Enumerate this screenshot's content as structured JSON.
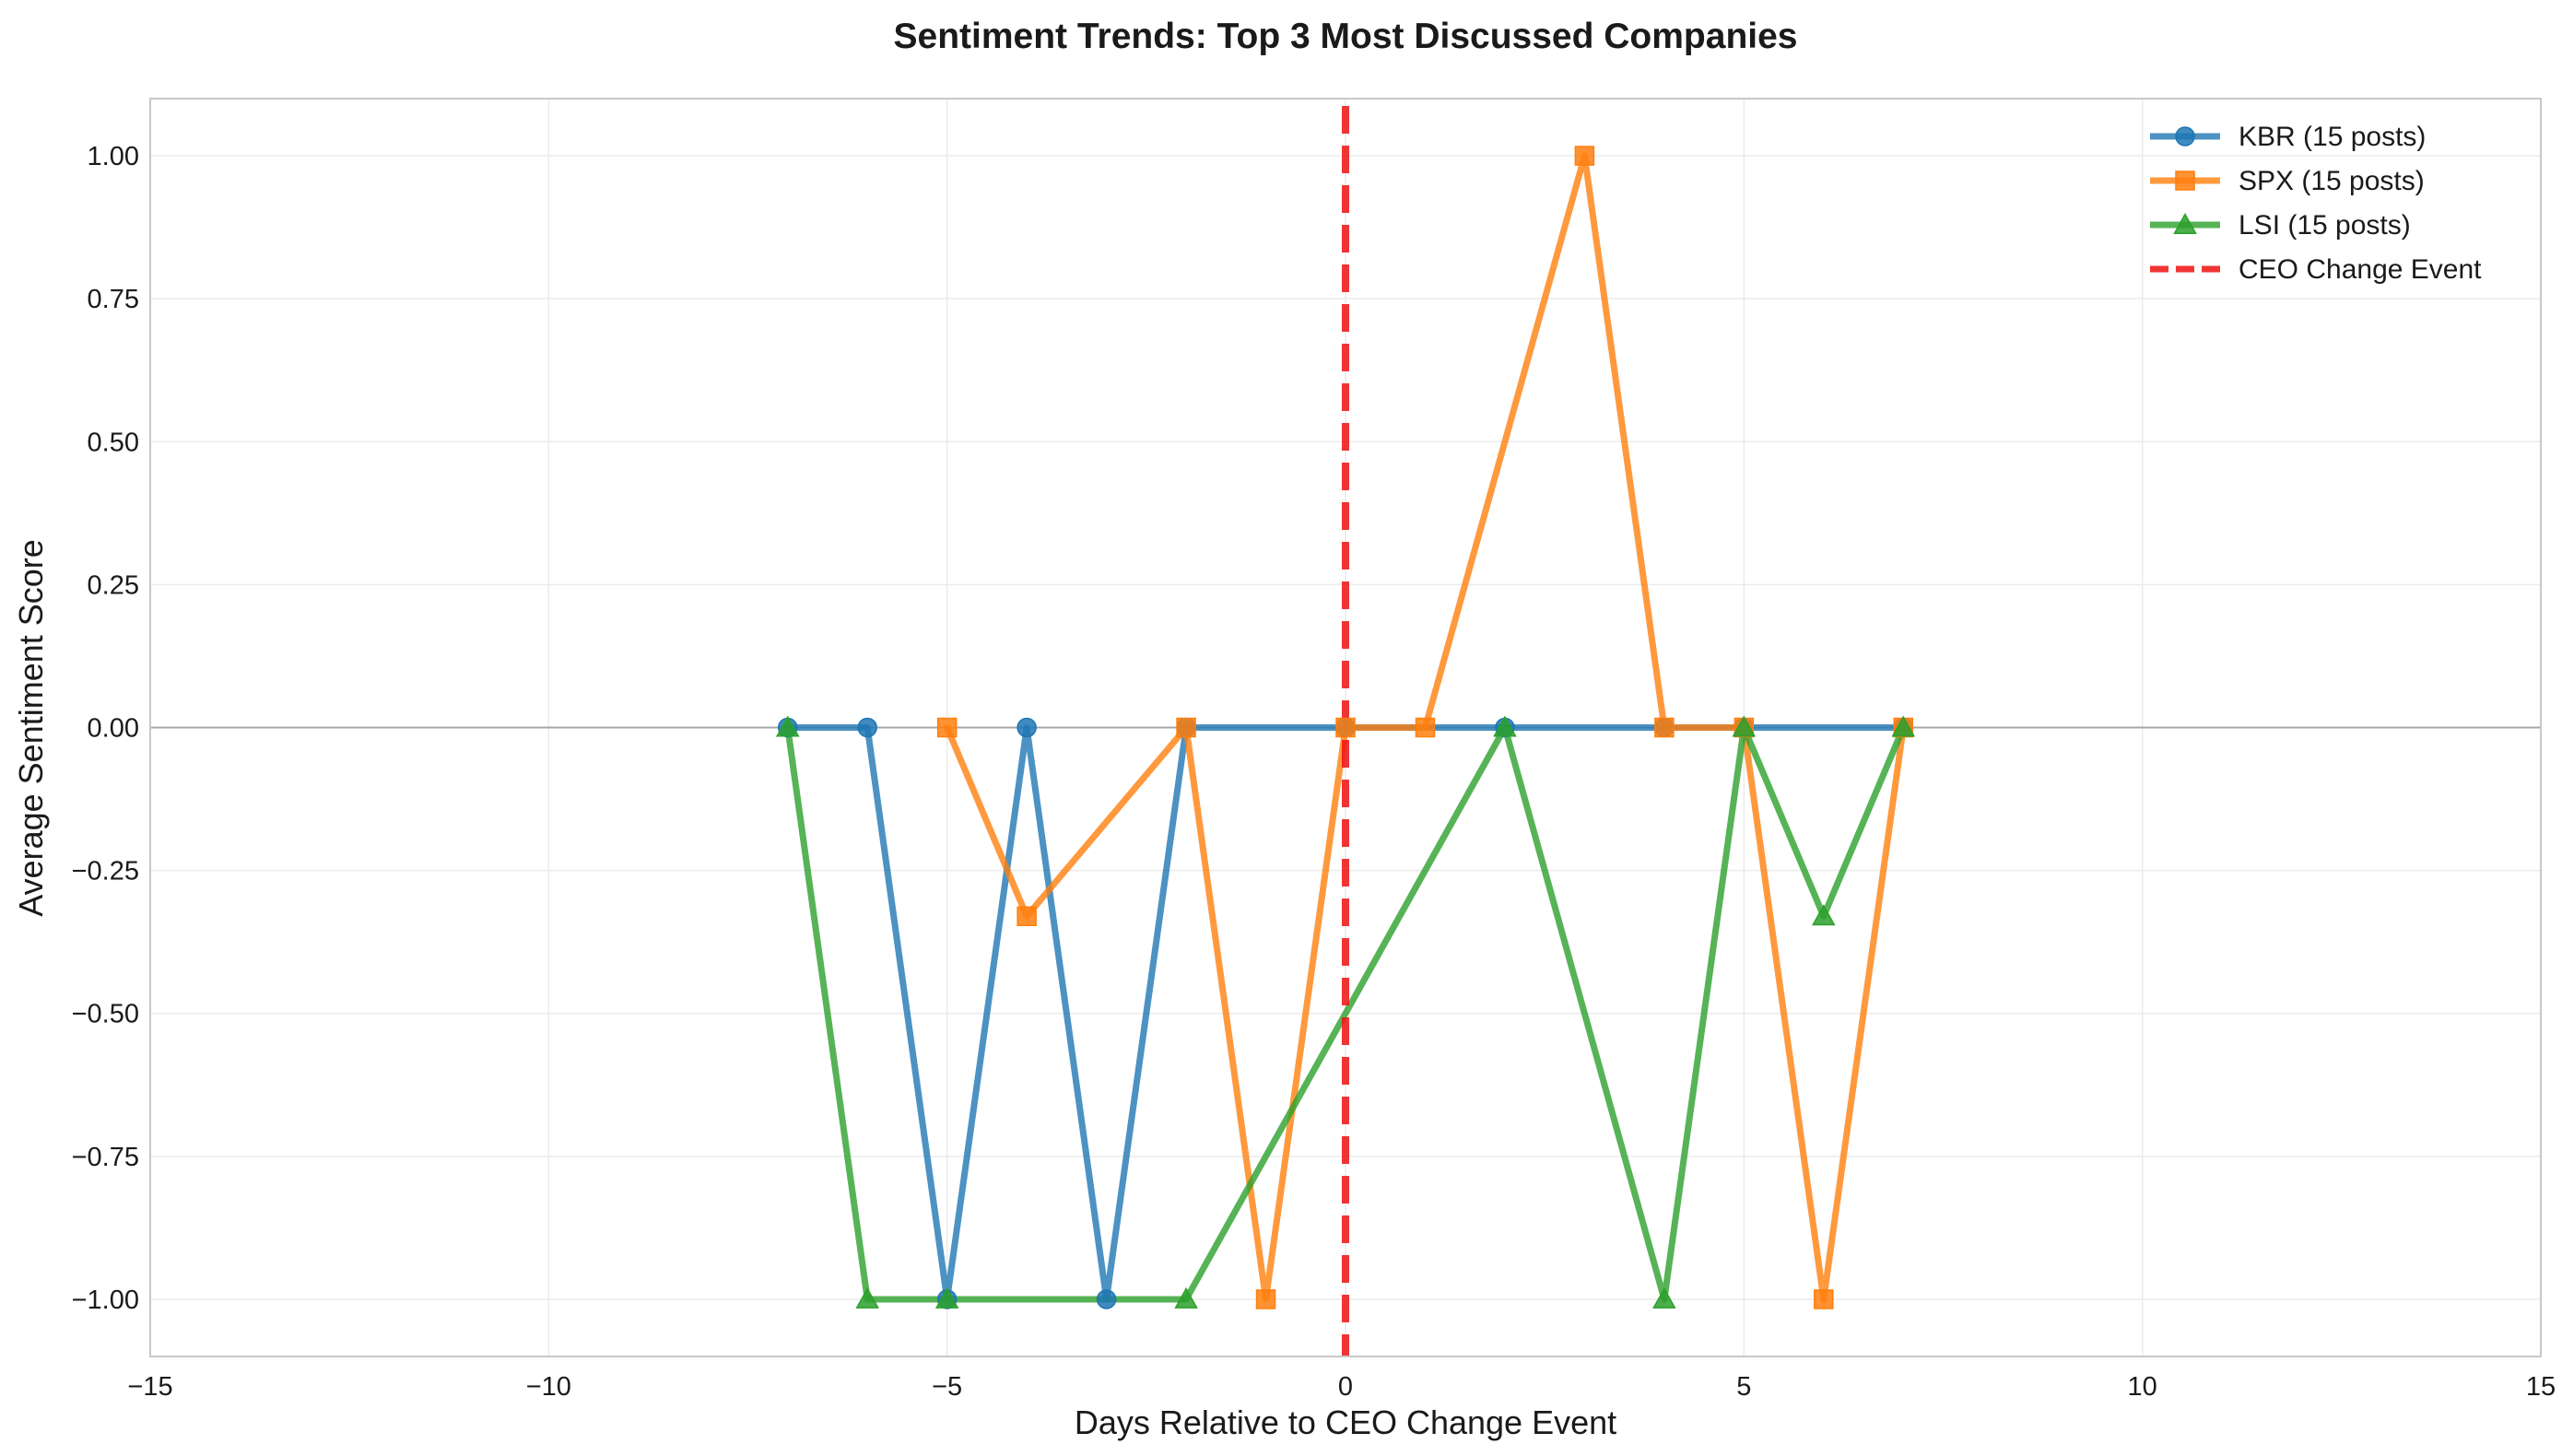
{
  "chart_data": {
    "type": "line",
    "title": "Sentiment Trends: Top 3 Most Discussed Companies",
    "xlabel": "Days Relative to CEO Change Event",
    "ylabel": "Average Sentiment Score",
    "xlim": [
      -15,
      15
    ],
    "ylim": [
      -1.1,
      1.1
    ],
    "xticks": [
      -15,
      -10,
      -5,
      0,
      5,
      10,
      15
    ],
    "xtick_labels": [
      "−15",
      "−10",
      "−5",
      "0",
      "5",
      "10",
      "15"
    ],
    "yticks": [
      -1.0,
      -0.75,
      -0.5,
      -0.25,
      0.0,
      0.25,
      0.5,
      0.75,
      1.0
    ],
    "ytick_labels": [
      "−1.00",
      "−0.75",
      "−0.50",
      "−0.25",
      "0.00",
      "0.25",
      "0.50",
      "0.75",
      "1.00"
    ],
    "grid": true,
    "legend_position": "top-right",
    "series": [
      {
        "name": "KBR (15 posts)",
        "color": "#1f77b4",
        "marker": "circle",
        "x": [
          -7,
          -6,
          -5,
          -4,
          -3,
          -2,
          0,
          2,
          4,
          5,
          7
        ],
        "y": [
          0,
          0,
          -1,
          0,
          -1,
          0,
          0,
          0,
          0,
          0,
          0
        ]
      },
      {
        "name": "SPX (15 posts)",
        "color": "#ff7f0e",
        "marker": "square",
        "x": [
          -5,
          -4,
          -2,
          -1,
          0,
          1,
          3,
          4,
          5,
          6,
          7
        ],
        "y": [
          0,
          -0.33,
          0,
          -1,
          0,
          0,
          1,
          0,
          0,
          -1,
          0
        ]
      },
      {
        "name": "LSI (15 posts)",
        "color": "#2ca02c",
        "marker": "triangle",
        "x": [
          -7,
          -6,
          -5,
          -2,
          2,
          4,
          5,
          6,
          7
        ],
        "y": [
          0,
          -1,
          -1,
          -1,
          0,
          -1,
          0,
          -0.33,
          0
        ]
      }
    ],
    "reference_lines": [
      {
        "name": "CEO Change Event",
        "orientation": "vertical",
        "x": 0,
        "color": "#ee1111",
        "style": "dashed"
      },
      {
        "orientation": "horizontal",
        "y": 0,
        "color": "#888888",
        "style": "solid"
      }
    ]
  }
}
